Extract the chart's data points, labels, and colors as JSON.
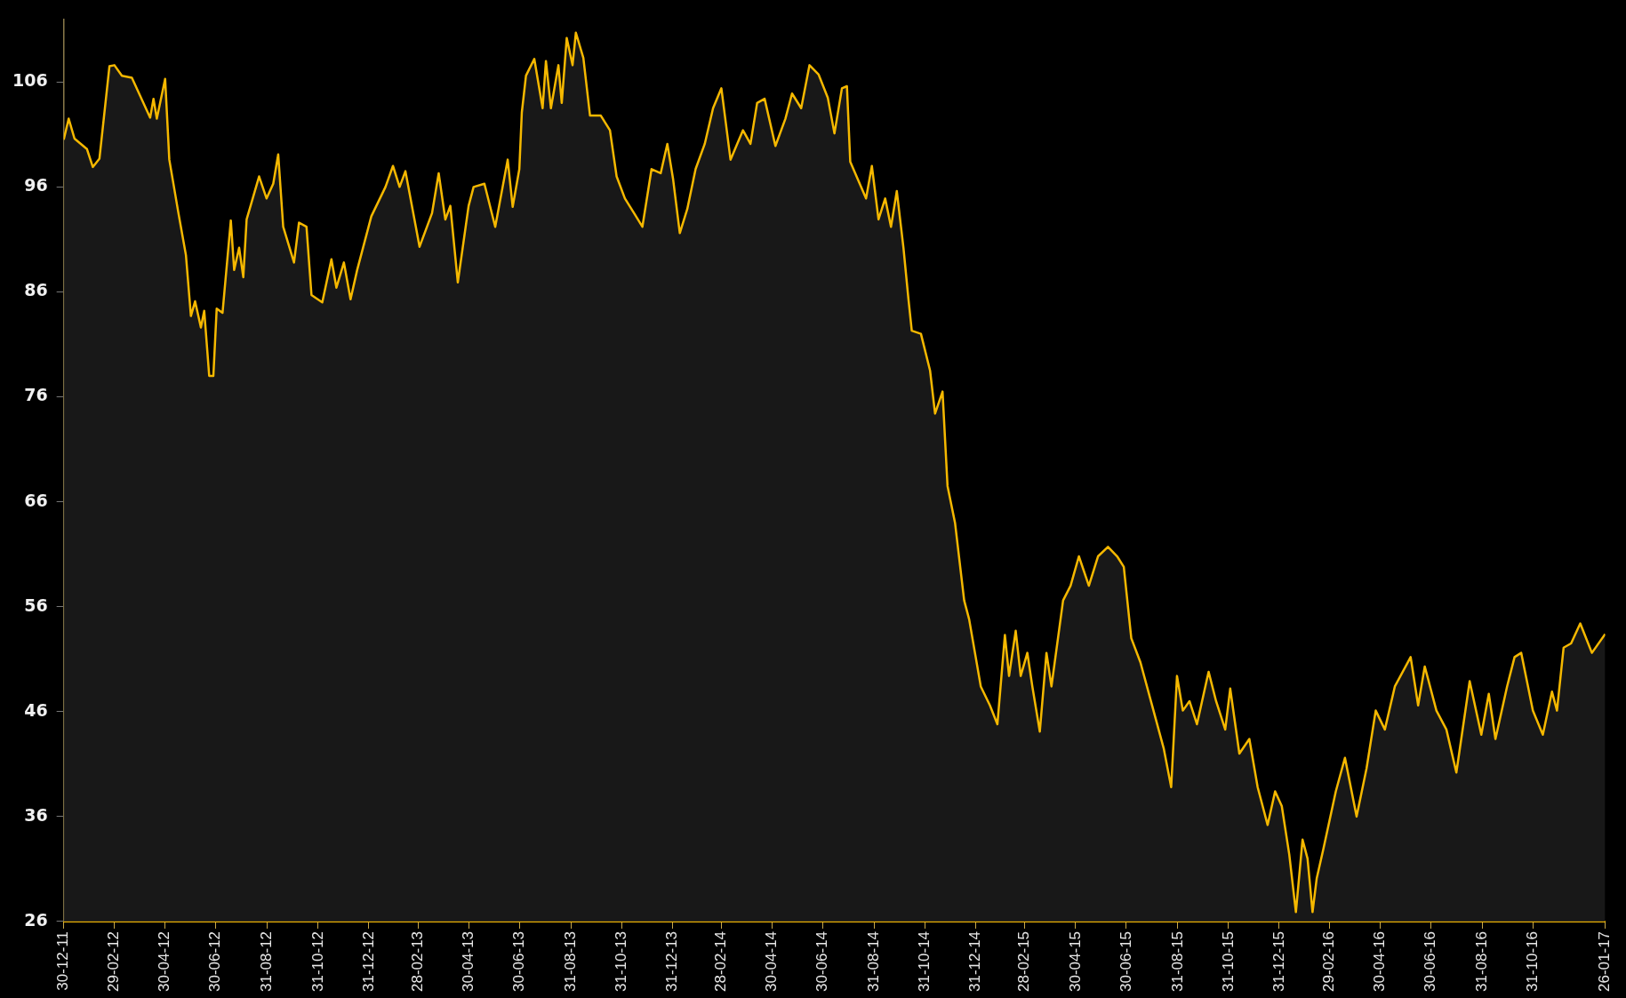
{
  "chart_data": {
    "type": "area",
    "x": [
      "2011-12-30",
      "2012-01-05",
      "2012-01-12",
      "2012-01-27",
      "2012-02-03",
      "2012-02-11",
      "2012-02-23",
      "2012-02-29",
      "2012-03-09",
      "2012-03-21",
      "2012-04-12",
      "2012-04-16",
      "2012-04-20",
      "2012-04-30",
      "2012-05-05",
      "2012-05-16",
      "2012-05-25",
      "2012-05-31",
      "2012-06-05",
      "2012-06-12",
      "2012-06-16",
      "2012-06-22",
      "2012-06-27",
      "2012-07-01",
      "2012-07-08",
      "2012-07-18",
      "2012-07-22",
      "2012-07-28",
      "2012-08-02",
      "2012-08-06",
      "2012-08-21",
      "2012-08-30",
      "2012-09-07",
      "2012-09-13",
      "2012-09-19",
      "2012-10-02",
      "2012-10-08",
      "2012-10-17",
      "2012-10-23",
      "2012-11-05",
      "2012-11-16",
      "2012-11-22",
      "2012-12-01",
      "2012-12-09",
      "2012-12-17",
      "2013-01-03",
      "2013-01-20",
      "2013-01-29",
      "2013-02-06",
      "2013-02-13",
      "2013-03-02",
      "2013-03-17",
      "2013-03-25",
      "2013-04-02",
      "2013-04-08",
      "2013-04-17",
      "2013-04-30",
      "2013-05-06",
      "2013-05-19",
      "2013-06-01",
      "2013-06-16",
      "2013-06-22",
      "2013-06-30",
      "2013-07-03",
      "2013-07-08",
      "2013-07-18",
      "2013-07-28",
      "2013-08-01",
      "2013-08-07",
      "2013-08-16",
      "2013-08-20",
      "2013-08-26",
      "2013-09-02",
      "2013-09-06",
      "2013-09-15",
      "2013-09-23",
      "2013-10-06",
      "2013-10-17",
      "2013-10-25",
      "2013-11-04",
      "2013-11-15",
      "2013-11-25",
      "2013-12-06",
      "2013-12-17",
      "2013-12-25",
      "2014-01-01",
      "2014-01-09",
      "2014-01-18",
      "2014-01-28",
      "2014-02-08",
      "2014-02-18",
      "2014-02-28",
      "2014-03-11",
      "2014-03-26",
      "2014-04-04",
      "2014-04-12",
      "2014-04-21",
      "2014-05-04",
      "2014-05-16",
      "2014-05-24",
      "2014-06-04",
      "2014-06-14",
      "2014-06-25",
      "2014-07-06",
      "2014-07-14",
      "2014-07-23",
      "2014-07-29",
      "2014-08-02",
      "2014-08-21",
      "2014-08-28",
      "2014-09-05",
      "2014-09-13",
      "2014-09-20",
      "2014-09-27",
      "2014-10-05",
      "2014-10-11",
      "2014-10-15",
      "2014-10-26",
      "2014-11-06",
      "2014-11-12",
      "2014-11-21",
      "2014-11-27",
      "2014-12-06",
      "2014-12-17",
      "2014-12-23",
      "2015-01-06",
      "2015-01-17",
      "2015-01-26",
      "2015-02-04",
      "2015-02-09",
      "2015-02-17",
      "2015-02-23",
      "2015-03-03",
      "2015-03-09",
      "2015-03-18",
      "2015-03-26",
      "2015-04-01",
      "2015-04-15",
      "2015-04-24",
      "2015-05-04",
      "2015-05-16",
      "2015-05-27",
      "2015-06-08",
      "2015-06-19",
      "2015-06-27",
      "2015-07-06",
      "2015-07-17",
      "2015-07-31",
      "2015-08-14",
      "2015-08-23",
      "2015-08-30",
      "2015-09-06",
      "2015-09-14",
      "2015-09-23",
      "2015-10-07",
      "2015-10-16",
      "2015-10-27",
      "2015-11-02",
      "2015-11-13",
      "2015-11-25",
      "2015-12-05",
      "2015-12-17",
      "2015-12-26",
      "2016-01-03",
      "2016-01-12",
      "2016-01-20",
      "2016-01-28",
      "2016-02-03",
      "2016-02-09",
      "2016-02-14",
      "2016-02-22",
      "2016-03-08",
      "2016-03-19",
      "2016-04-02",
      "2016-04-14",
      "2016-04-25",
      "2016-05-06",
      "2016-05-18",
      "2016-06-06",
      "2016-06-15",
      "2016-06-23",
      "2016-07-07",
      "2016-07-19",
      "2016-07-31",
      "2016-08-16",
      "2016-08-30",
      "2016-09-08",
      "2016-09-16",
      "2016-09-30",
      "2016-10-09",
      "2016-10-17",
      "2016-10-31",
      "2016-11-12",
      "2016-11-23",
      "2016-11-29",
      "2016-12-07",
      "2016-12-16",
      "2016-12-27",
      "2017-01-10",
      "2017-01-26"
    ],
    "values": [
      100.5,
      102.5,
      100.6,
      99.6,
      97.9,
      98.7,
      107.5,
      107.6,
      106.6,
      106.4,
      102.6,
      104.4,
      102.5,
      106.3,
      98.6,
      93.5,
      89.5,
      83.7,
      85.1,
      82.6,
      84.2,
      78,
      78,
      84.4,
      84,
      92.8,
      88.1,
      90.2,
      87.4,
      92.9,
      97,
      94.9,
      96.3,
      99.1,
      92.2,
      88.8,
      92.6,
      92.2,
      85.7,
      85,
      89.1,
      86.4,
      88.8,
      85.3,
      88.1,
      93.2,
      96,
      98,
      96,
      97.5,
      90.3,
      93.5,
      97.3,
      92.9,
      94.2,
      86.9,
      94.2,
      96,
      96.3,
      92.2,
      98.6,
      94.1,
      97.7,
      103.1,
      106.6,
      108.2,
      103.5,
      108,
      103.5,
      107.6,
      104,
      110.2,
      107.6,
      110.7,
      108.3,
      102.8,
      102.8,
      101.4,
      97,
      94.9,
      93.5,
      92.2,
      97.7,
      97.3,
      100.1,
      96.7,
      91.6,
      93.9,
      97.7,
      100.1,
      103.5,
      105.4,
      98.6,
      101.4,
      100.1,
      104,
      104.4,
      99.9,
      102.5,
      104.9,
      103.5,
      107.6,
      106.7,
      104.5,
      101.1,
      105.4,
      105.6,
      98.4,
      94.9,
      98,
      92.9,
      94.9,
      92.2,
      95.6,
      90.2,
      85.3,
      82.3,
      82,
      78.5,
      74.4,
      76.5,
      67.5,
      64,
      56.6,
      54.8,
      48.4,
      46.6,
      44.8,
      53.3,
      49.4,
      53.7,
      49.4,
      51.6,
      48.4,
      44.1,
      51.6,
      48.4,
      56.6,
      58,
      60.8,
      58,
      60.8,
      61.7,
      60.8,
      59.8,
      53,
      50.7,
      46.6,
      42.5,
      38.8,
      49.4,
      46.1,
      47,
      44.8,
      49.8,
      47,
      44.3,
      48.2,
      42,
      43.4,
      38.8,
      35.2,
      38.4,
      37,
      32.4,
      26.9,
      33.8,
      32,
      26.9,
      30.1,
      32.9,
      38.4,
      41.6,
      36,
      40.6,
      46.1,
      44.3,
      48.4,
      51.2,
      46.6,
      50.3,
      46.1,
      44.3,
      40.2,
      48.9,
      43.8,
      47.7,
      43.4,
      48.4,
      51.2,
      51.6,
      46.1,
      43.8,
      47.9,
      46.1,
      52.1,
      52.5,
      54.4,
      51.6,
      53.4
    ],
    "color": "#f5b800",
    "xlim": [
      "2011-12-30",
      "2017-01-26"
    ],
    "xticks": [
      {
        "value": "2011-12-30",
        "label": "30-12-11"
      },
      {
        "value": "2012-02-29",
        "label": "29-02-12"
      },
      {
        "value": "2012-04-30",
        "label": "30-04-12"
      },
      {
        "value": "2012-06-30",
        "label": "30-06-12"
      },
      {
        "value": "2012-08-31",
        "label": "31-08-12"
      },
      {
        "value": "2012-10-31",
        "label": "31-10-12"
      },
      {
        "value": "2012-12-31",
        "label": "31-12-12"
      },
      {
        "value": "2013-02-28",
        "label": "28-02-13"
      },
      {
        "value": "2013-04-30",
        "label": "30-04-13"
      },
      {
        "value": "2013-06-30",
        "label": "30-06-13"
      },
      {
        "value": "2013-08-31",
        "label": "31-08-13"
      },
      {
        "value": "2013-10-31",
        "label": "31-10-13"
      },
      {
        "value": "2013-12-31",
        "label": "31-12-13"
      },
      {
        "value": "2014-02-28",
        "label": "28-02-14"
      },
      {
        "value": "2014-04-30",
        "label": "30-04-14"
      },
      {
        "value": "2014-06-30",
        "label": "30-06-14"
      },
      {
        "value": "2014-08-31",
        "label": "31-08-14"
      },
      {
        "value": "2014-10-31",
        "label": "31-10-14"
      },
      {
        "value": "2014-12-31",
        "label": "31-12-14"
      },
      {
        "value": "2015-02-28",
        "label": "28-02-15"
      },
      {
        "value": "2015-04-30",
        "label": "30-04-15"
      },
      {
        "value": "2015-06-30",
        "label": "30-06-15"
      },
      {
        "value": "2015-08-31",
        "label": "31-08-15"
      },
      {
        "value": "2015-10-31",
        "label": "31-10-15"
      },
      {
        "value": "2015-12-31",
        "label": "31-12-15"
      },
      {
        "value": "2016-02-29",
        "label": "29-02-16"
      },
      {
        "value": "2016-04-30",
        "label": "30-04-16"
      },
      {
        "value": "2016-06-30",
        "label": "30-06-16"
      },
      {
        "value": "2016-08-31",
        "label": "31-08-16"
      },
      {
        "value": "2016-10-31",
        "label": "31-10-16"
      },
      {
        "value": "2017-01-26",
        "label": "26-01-17"
      }
    ],
    "ylim": [
      26,
      112
    ],
    "yticks": [
      26,
      36,
      46,
      56,
      66,
      76,
      86,
      96,
      106
    ],
    "grid": false,
    "legend": false
  }
}
